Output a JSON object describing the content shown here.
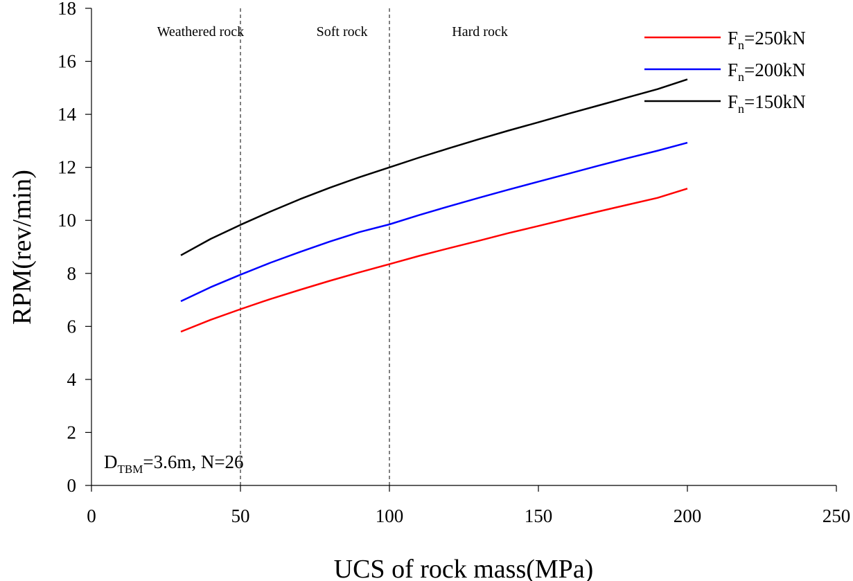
{
  "chart_data": {
    "type": "line",
    "xlabel": "UCS of rock mass(MPa)",
    "ylabel": "RPM(rev/min)",
    "xlim": [
      0,
      250
    ],
    "ylim": [
      0,
      18
    ],
    "xticks": [
      0,
      50,
      100,
      150,
      200,
      250
    ],
    "yticks": [
      0,
      2,
      4,
      6,
      8,
      10,
      12,
      14,
      16,
      18
    ],
    "grid": false,
    "legend_position": "top-right",
    "x": [
      30,
      40,
      50,
      60,
      70,
      80,
      90,
      100,
      110,
      120,
      130,
      140,
      150,
      160,
      170,
      180,
      190,
      200
    ],
    "series": [
      {
        "name_main": "F",
        "name_sub": "n",
        "name_rest": "=250kN",
        "color": "#ff0000",
        "values": [
          5.8,
          6.25,
          6.65,
          7.03,
          7.38,
          7.72,
          8.04,
          8.35,
          8.66,
          8.95,
          9.23,
          9.52,
          9.79,
          10.06,
          10.33,
          10.59,
          10.85,
          11.2
        ]
      },
      {
        "name_main": "F",
        "name_sub": "n",
        "name_rest": "=200kN",
        "color": "#0000ff",
        "values": [
          6.95,
          7.48,
          7.95,
          8.4,
          8.81,
          9.2,
          9.56,
          9.85,
          10.2,
          10.53,
          10.85,
          11.16,
          11.46,
          11.76,
          12.06,
          12.35,
          12.63,
          12.93
        ]
      },
      {
        "name_main": "F",
        "name_sub": "n",
        "name_rest": "=150kN",
        "color": "#000000",
        "values": [
          8.68,
          9.3,
          9.83,
          10.33,
          10.8,
          11.23,
          11.63,
          12.0,
          12.37,
          12.72,
          13.06,
          13.39,
          13.7,
          14.02,
          14.33,
          14.64,
          14.95,
          15.32
        ]
      }
    ],
    "vlines": [
      50,
      100
    ],
    "regions": [
      {
        "label": "Weathered rock",
        "x": 22
      },
      {
        "label": "Soft rock",
        "x": 75.5
      },
      {
        "label": "Hard rock",
        "x": 121
      }
    ],
    "annotation": {
      "main": "D",
      "sub": "TBM",
      "rest": "=3.6m, N=26"
    }
  }
}
